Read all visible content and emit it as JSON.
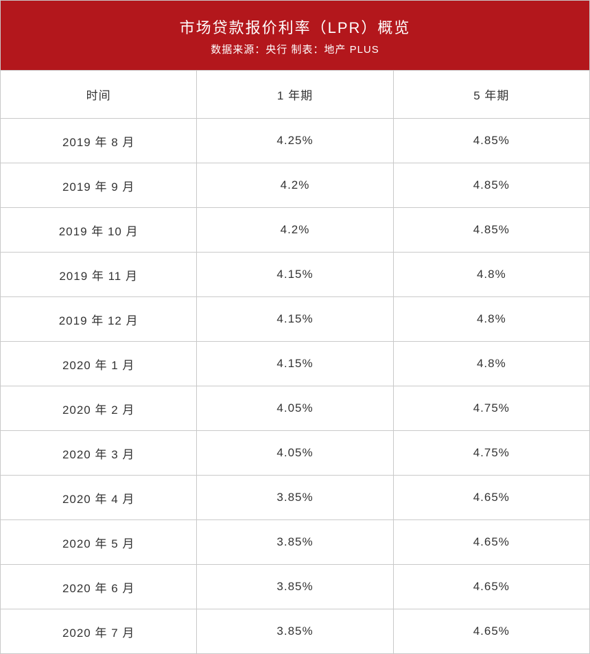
{
  "header": {
    "title": "市场贷款报价利率（LPR）概览",
    "subtitle": "数据来源：央行  制表：地产 PLUS",
    "bg_color": "#b3171c",
    "text_color": "#ffffff",
    "title_fontsize": 22,
    "sub_fontsize": 15
  },
  "table": {
    "border_color": "#c9c9c9",
    "cell_fontsize": 17,
    "cell_text_color": "#333333",
    "columns": [
      "时间",
      "1 年期",
      "5 年期"
    ],
    "column_widths_pct": [
      33.33,
      33.33,
      33.33
    ],
    "rows": [
      [
        "2019 年 8 月",
        "4.25%",
        "4.85%"
      ],
      [
        "2019 年 9 月",
        "4.2%",
        "4.85%"
      ],
      [
        "2019 年 10 月",
        "4.2%",
        "4.85%"
      ],
      [
        "2019 年 11 月",
        "4.15%",
        "4.8%"
      ],
      [
        "2019 年 12 月",
        "4.15%",
        "4.8%"
      ],
      [
        "2020 年 1 月",
        "4.15%",
        "4.8%"
      ],
      [
        "2020 年 2 月",
        "4.05%",
        "4.75%"
      ],
      [
        "2020 年 3 月",
        "4.05%",
        "4.75%"
      ],
      [
        "2020 年 4 月",
        "3.85%",
        "4.65%"
      ],
      [
        "2020 年 5 月",
        "3.85%",
        "4.65%"
      ],
      [
        "2020 年 6 月",
        "3.85%",
        "4.65%"
      ],
      [
        "2020 年 7 月",
        "3.85%",
        "4.65%"
      ]
    ]
  }
}
